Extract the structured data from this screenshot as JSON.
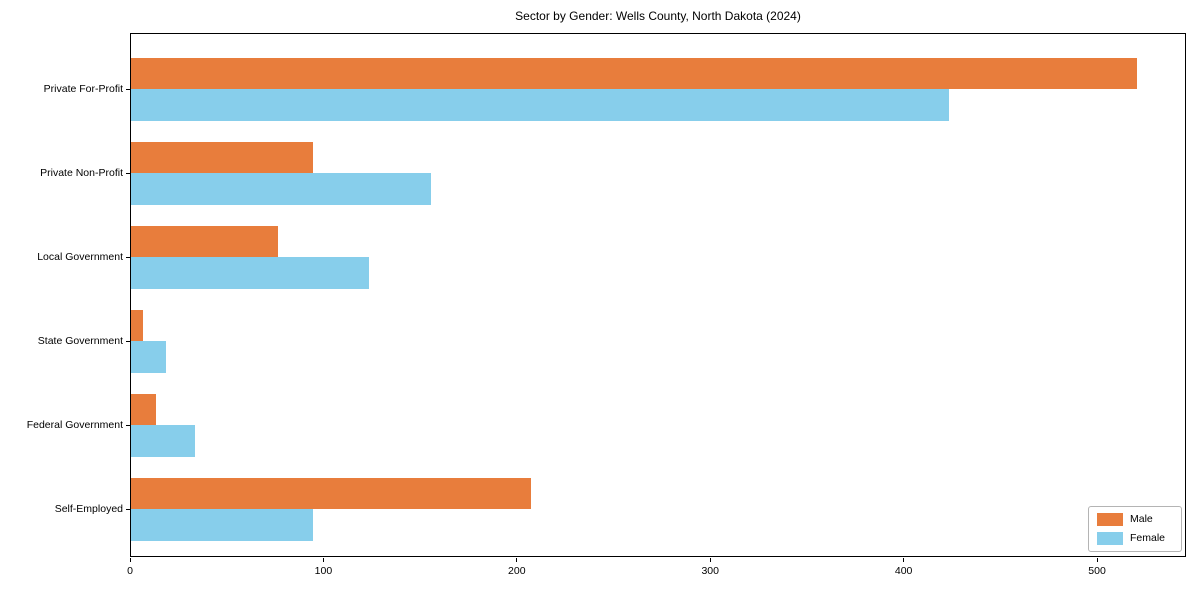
{
  "chart": {
    "title": "Sector by Gender: Wells County, North Dakota (2024)",
    "legend": {
      "entries": [
        {
          "label": "Male",
          "color": "#e87d3c"
        },
        {
          "label": "Female",
          "color": "#87ceeb"
        }
      ],
      "position": "lower right"
    }
  },
  "chart_data": {
    "type": "bar",
    "orientation": "horizontal",
    "title": "Sector by Gender: Wells County, North Dakota (2024)",
    "categories": [
      "Private For-Profit",
      "Private Non-Profit",
      "Local Government",
      "State Government",
      "Federal Government",
      "Self-Employed"
    ],
    "series": [
      {
        "name": "Male",
        "color": "#e87d3c",
        "values": [
          520,
          94,
          76,
          6,
          13,
          207
        ]
      },
      {
        "name": "Female",
        "color": "#87ceeb",
        "values": [
          423,
          155,
          123,
          18,
          33,
          94
        ]
      }
    ],
    "xlabel": "",
    "ylabel": "",
    "xlim": [
      0,
      546
    ],
    "xticks": [
      0,
      100,
      200,
      300,
      400,
      500
    ],
    "grid": false,
    "legend_position": "lower right"
  }
}
